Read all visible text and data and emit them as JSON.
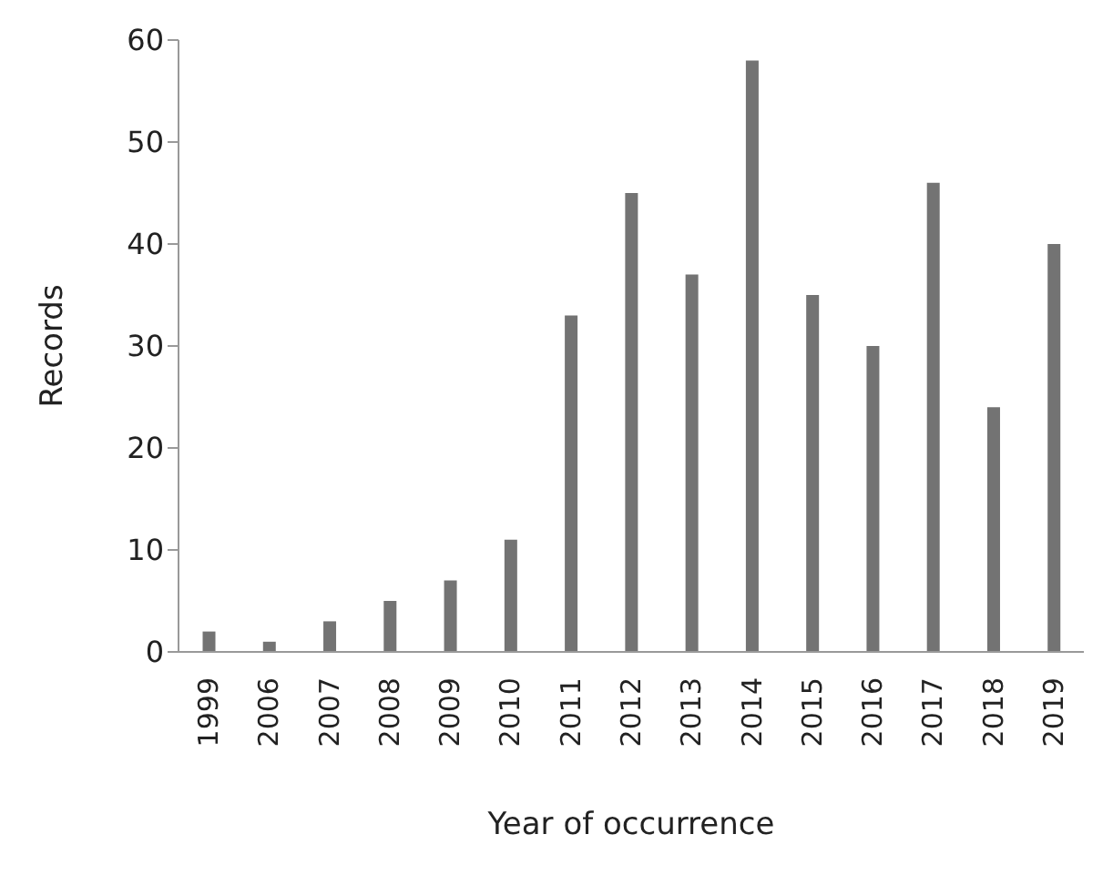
{
  "chart_data": {
    "type": "bar",
    "xlabel": "Year of occurrence",
    "ylabel": "Records",
    "categories": [
      "1999",
      "2006",
      "2007",
      "2008",
      "2009",
      "2010",
      "2011",
      "2012",
      "2013",
      "2014",
      "2015",
      "2016",
      "2017",
      "2018",
      "2019"
    ],
    "values": [
      2,
      1,
      3,
      5,
      7,
      11,
      33,
      45,
      37,
      58,
      35,
      30,
      46,
      24,
      40
    ],
    "color": "#737373",
    "ylim": [
      0,
      60
    ],
    "yticks": [
      0,
      10,
      20,
      30,
      40,
      50,
      60
    ],
    "grid": false
  }
}
